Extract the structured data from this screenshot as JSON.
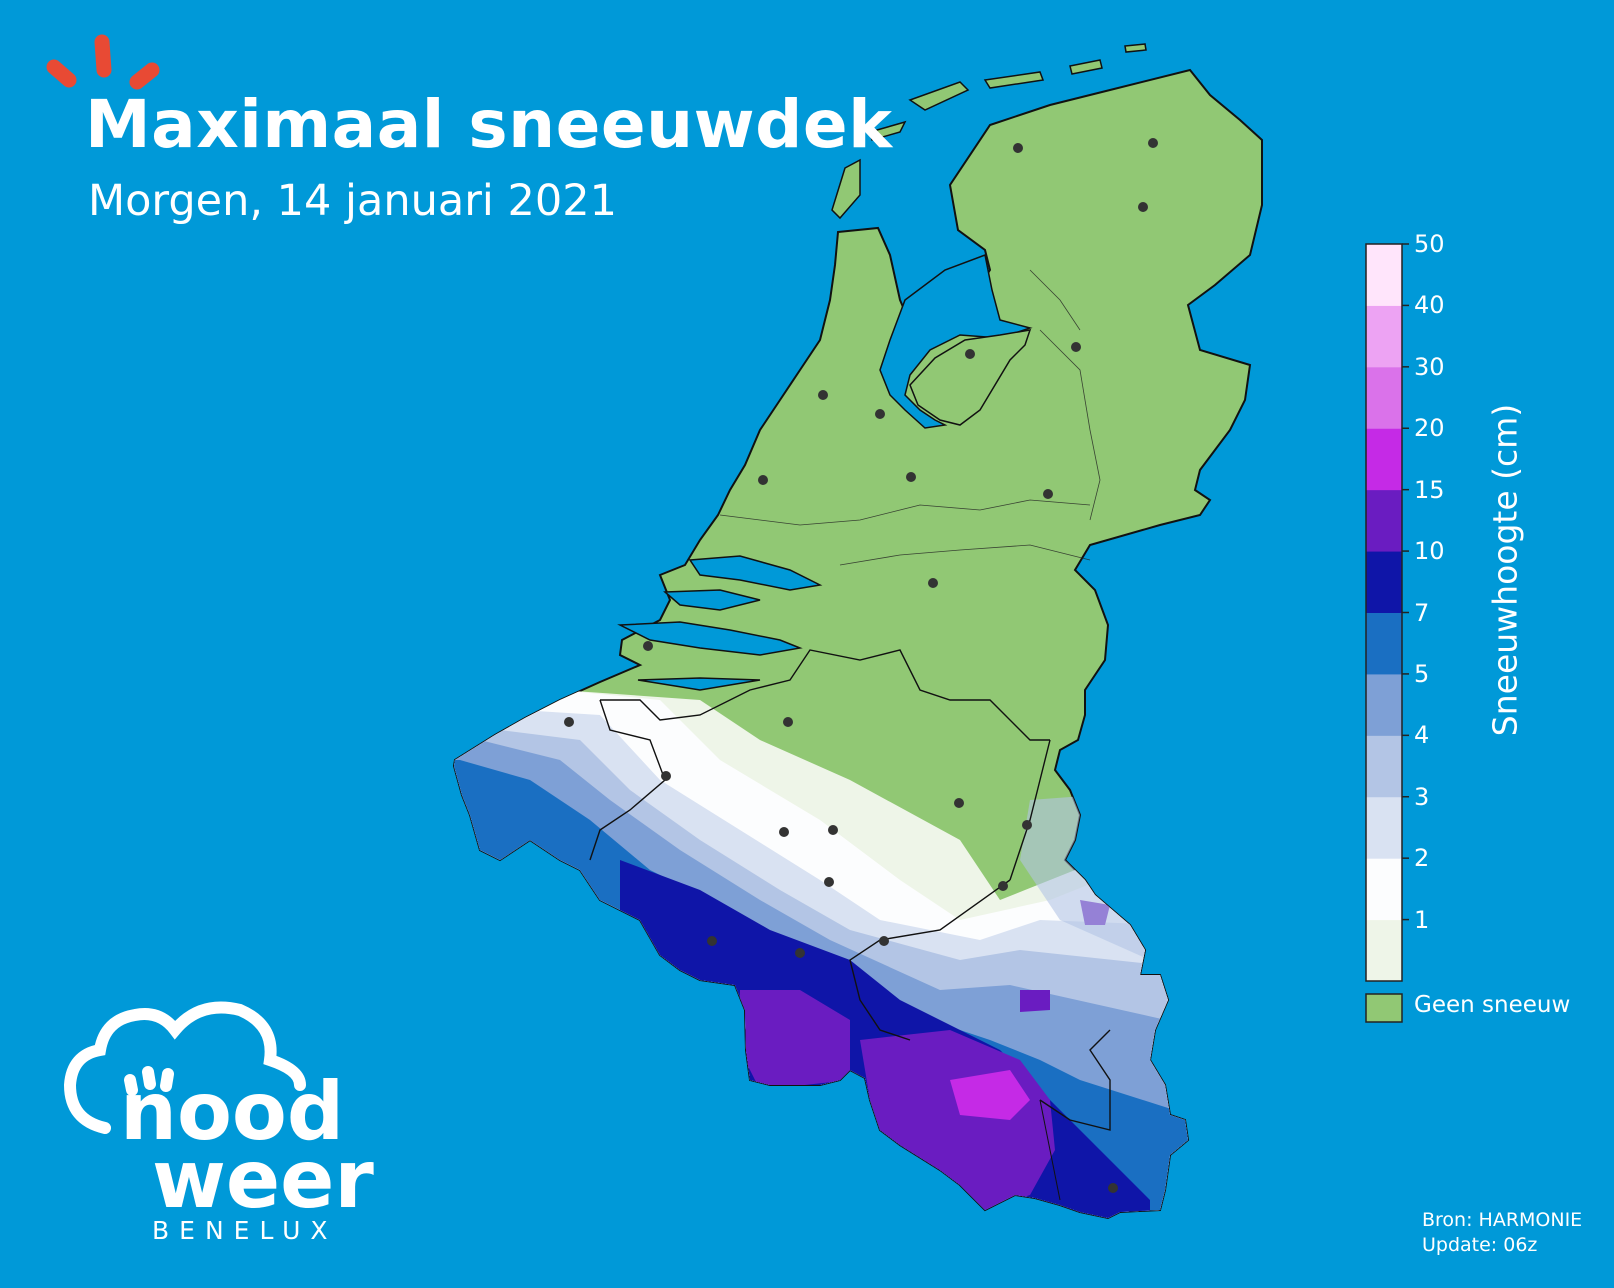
{
  "title": "Maximaal sneeuwdek",
  "subtitle": "Morgen, 14 januari 2021",
  "colors": {
    "background": "#0099d8",
    "no_snow": "#91c874",
    "accent_rays": "#e84a34"
  },
  "legend": {
    "title": "Sneeuwhoogte (cm)",
    "ticks": [
      "1",
      "2",
      "3",
      "4",
      "5",
      "7",
      "10",
      "15",
      "20",
      "30",
      "40",
      "50"
    ],
    "bins": [
      {
        "from": 0,
        "to": 1,
        "color": "#eef5e8"
      },
      {
        "from": 1,
        "to": 2,
        "color": "#fcfdfe"
      },
      {
        "from": 2,
        "to": 3,
        "color": "#d9e2f2"
      },
      {
        "from": 3,
        "to": 4,
        "color": "#b3c5e5"
      },
      {
        "from": 4,
        "to": 5,
        "color": "#7ea0d6"
      },
      {
        "from": 5,
        "to": 7,
        "color": "#1a6fc2"
      },
      {
        "from": 7,
        "to": 10,
        "color": "#0f15a8"
      },
      {
        "from": 10,
        "to": 15,
        "color": "#6a1cc1"
      },
      {
        "from": 15,
        "to": 20,
        "color": "#c52ae6"
      },
      {
        "from": 20,
        "to": 30,
        "color": "#da72ea"
      },
      {
        "from": 30,
        "to": 40,
        "color": "#eda3f3"
      },
      {
        "from": 40,
        "to": 50,
        "color": "#ffe5fb"
      }
    ],
    "no_snow_label": "Geen sneeuw"
  },
  "source": {
    "line1": "Bron: HARMONIE",
    "line2": "Update: 06z"
  },
  "logo": {
    "word1": "nood",
    "word2": "weer",
    "word3": "BENELUX"
  }
}
